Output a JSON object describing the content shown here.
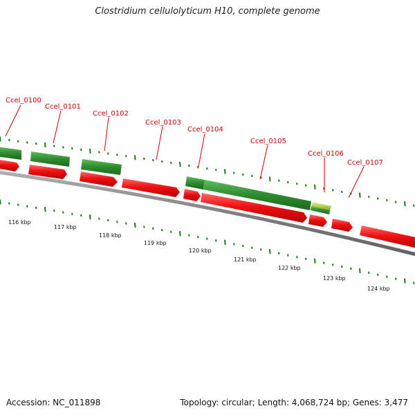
{
  "title": "Clostridium cellulolyticum H10, complete genome",
  "footer": {
    "accession": "Accession: NC_011898",
    "summary": "Topology: circular; Length: 4,068,724 bp; Genes: 3,477"
  },
  "colors": {
    "forward_strand": "#2e8b2e",
    "reverse_strand": "#ee1111",
    "highlight_gene": "#c8e060",
    "label": "#cc0000",
    "backbone": "#808080",
    "ticks": "#1a7a1a"
  },
  "gene_labels": [
    {
      "id": "Ccel_0100"
    },
    {
      "id": "Ccel_0101"
    },
    {
      "id": "Ccel_0102"
    },
    {
      "id": "Ccel_0103"
    },
    {
      "id": "Ccel_0104"
    },
    {
      "id": "Ccel_0105"
    },
    {
      "id": "Ccel_0106"
    },
    {
      "id": "Ccel_0107"
    }
  ],
  "scale_labels": [
    "116 kbp",
    "117 kbp",
    "118 kbp",
    "119 kbp",
    "120 kbp",
    "121 kbp",
    "122 kbp",
    "123 kbp",
    "124 kbp"
  ]
}
